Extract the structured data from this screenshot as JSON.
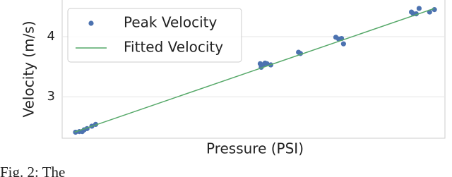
{
  "chart_data": {
    "type": "scatter",
    "xlabel": "Pressure (PSI)",
    "ylabel": "Velocity (m/s)",
    "caption": "Fig. 2: The",
    "xlim": [
      8,
      48
    ],
    "ylim": [
      2.31,
      4.61
    ],
    "yticks": [
      3,
      4
    ],
    "grid": true,
    "legend": "upper left",
    "series": [
      {
        "name": "Peak Velocity",
        "type": "scatter",
        "color": "#4c72b0",
        "x": [
          9.4,
          9.8,
          10.1,
          10.3,
          10.6,
          11.1,
          11.5,
          28.7,
          28.8,
          29.0,
          29.2,
          29.4,
          29.8,
          32.7,
          32.9,
          36.6,
          36.9,
          37.2,
          37.4,
          44.5,
          44.7,
          45.0,
          45.3,
          46.4,
          46.9
        ],
        "values": [
          2.41,
          2.42,
          2.42,
          2.45,
          2.47,
          2.51,
          2.54,
          3.55,
          3.49,
          3.53,
          3.56,
          3.55,
          3.53,
          3.74,
          3.72,
          3.99,
          3.96,
          3.97,
          3.88,
          4.41,
          4.38,
          4.38,
          4.47,
          4.41,
          4.45
        ]
      },
      {
        "name": "Fitted Velocity",
        "type": "line",
        "color": "#55a868",
        "x": [
          9.3,
          46.9
        ],
        "values": [
          2.41,
          4.47
        ]
      }
    ]
  }
}
